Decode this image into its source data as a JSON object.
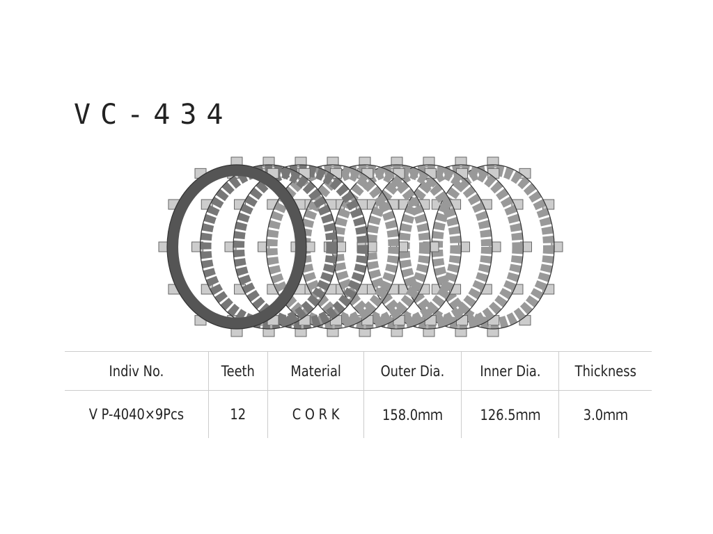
{
  "title": "VC-434",
  "image": {
    "description_icon": "clutch-plates-illustration",
    "plate_count": 9,
    "teeth": 12
  },
  "table": {
    "headers": [
      "Indiv No.",
      "Teeth",
      "Material",
      "Outer Dia.",
      "Inner Dia.",
      "Thickness"
    ],
    "row": [
      "V P-4040×9Pcs",
      "12",
      "C O R K",
      "158.0ｍｍ",
      "126.5ｍｍ",
      "3.0ｍｍ"
    ]
  }
}
